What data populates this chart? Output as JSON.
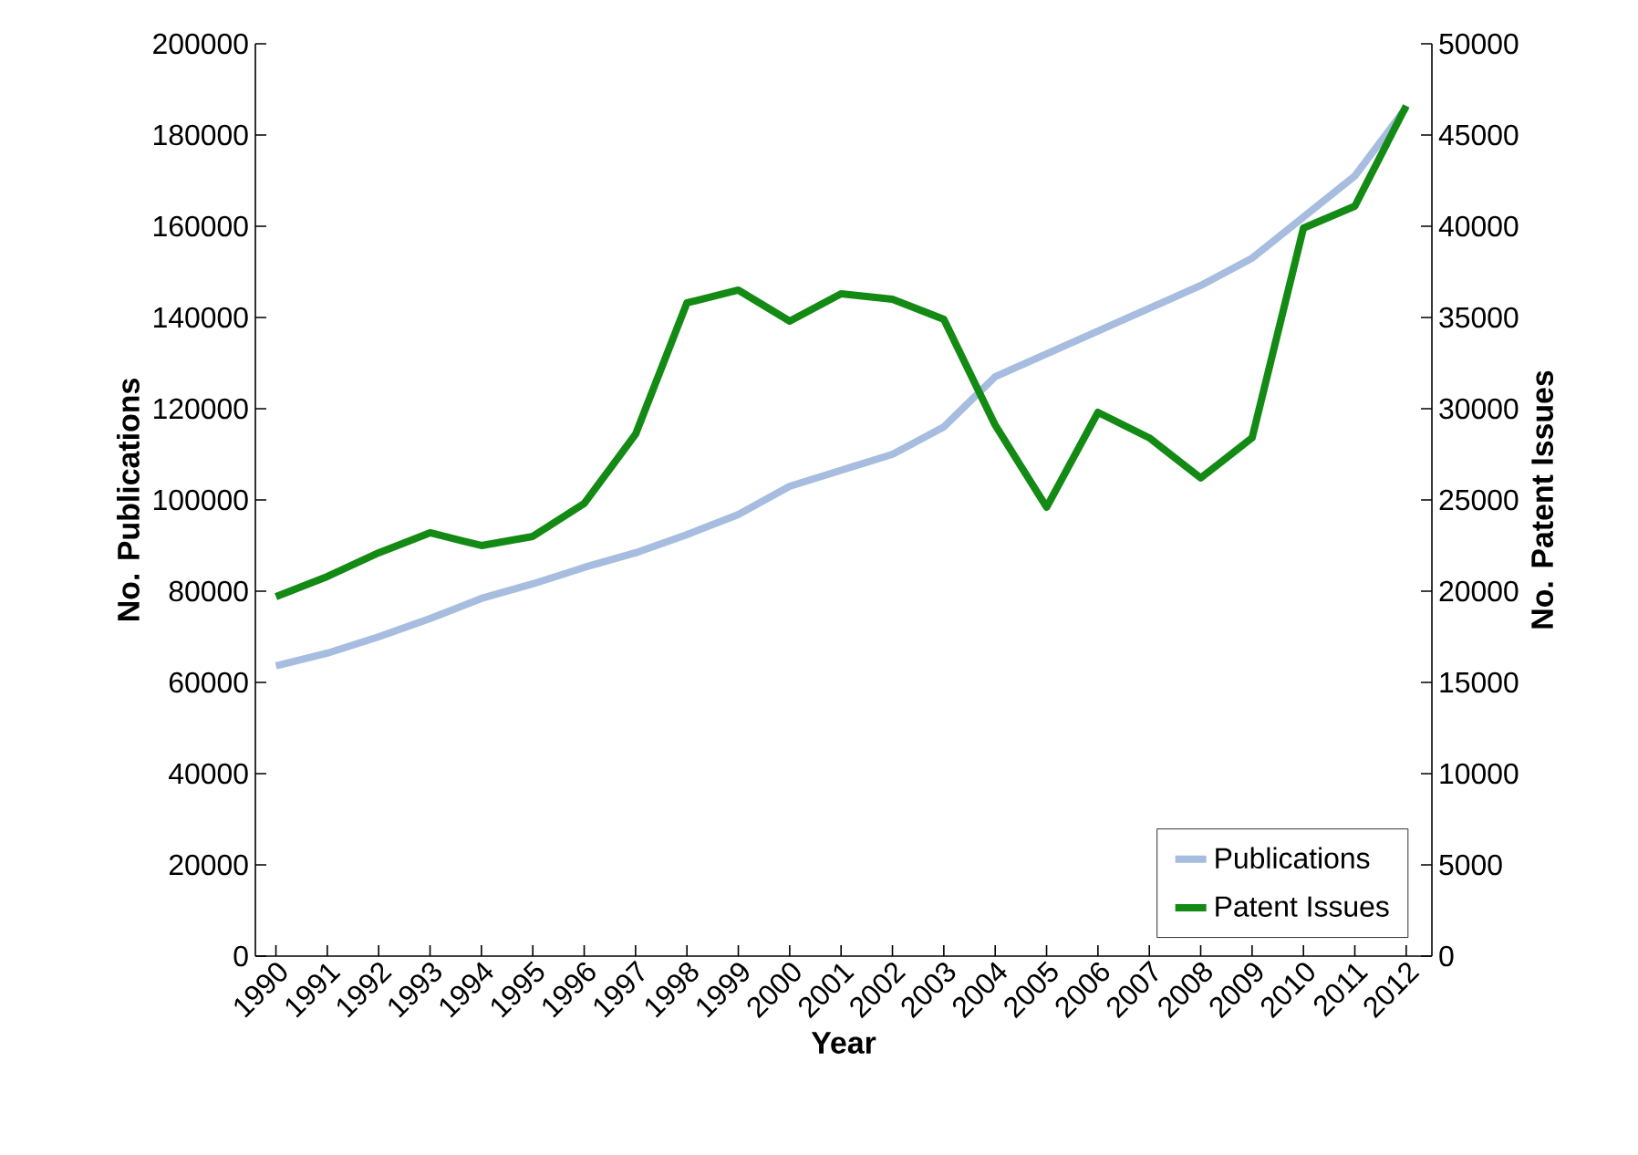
{
  "chart_data": {
    "type": "line",
    "xlabel": "Year",
    "ylabel": "No. Publications",
    "y2label": "No. Patent Issues",
    "categories": [
      "1990",
      "1991",
      "1992",
      "1993",
      "1994",
      "1995",
      "1996",
      "1997",
      "1998",
      "1999",
      "2000",
      "2001",
      "2002",
      "2003",
      "2004",
      "2005",
      "2006",
      "2007",
      "2008",
      "2009",
      "2010",
      "2011",
      "2012"
    ],
    "series": [
      {
        "name": "Publications",
        "color": "#a6bde0",
        "values": [
          63600,
          66400,
          70000,
          74000,
          78400,
          81600,
          85200,
          88400,
          92400,
          96800,
          103000,
          106500,
          110000,
          116000,
          127000,
          132000,
          137000,
          142000,
          147000,
          153000,
          162000,
          171000,
          186000
        ]
      },
      {
        "name": "Patent Issues",
        "color": "#138a13",
        "axis": "y2",
        "values": [
          19700,
          20800,
          22100,
          23200,
          22500,
          23000,
          24800,
          28600,
          35800,
          36500,
          34800,
          36300,
          36000,
          34900,
          29100,
          24600,
          29800,
          28400,
          26200,
          28400,
          39900,
          41100,
          46600
        ]
      }
    ],
    "ylim": [
      0,
      200000
    ],
    "yticks": [
      0,
      20000,
      40000,
      60000,
      80000,
      100000,
      120000,
      140000,
      160000,
      180000,
      200000
    ],
    "y2lim": [
      0,
      50000
    ],
    "y2ticks": [
      0,
      5000,
      10000,
      15000,
      20000,
      25000,
      30000,
      35000,
      40000,
      45000,
      50000
    ],
    "grid": false,
    "legend": "bottom right",
    "marker": "none",
    "line_style": "solid"
  }
}
